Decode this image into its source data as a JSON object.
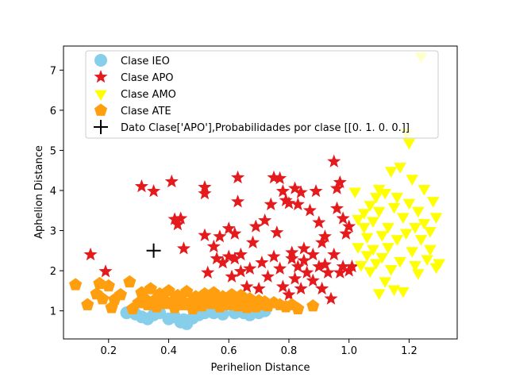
{
  "chart_data": {
    "type": "scatter",
    "title": "",
    "xlabel": "Perihelion Distance",
    "ylabel": "Aphelion Distance",
    "xlim": [
      0.05,
      1.36
    ],
    "ylim": [
      0.3,
      7.6
    ],
    "xticks": [
      0.2,
      0.4,
      0.6,
      0.8,
      1.0,
      1.2
    ],
    "xtick_labels": [
      "0.2",
      "0.4",
      "0.6",
      "0.8",
      "1.0",
      "1.2"
    ],
    "yticks": [
      1,
      2,
      3,
      4,
      5,
      6,
      7
    ],
    "ytick_labels": [
      "1",
      "2",
      "3",
      "4",
      "5",
      "6",
      "7"
    ],
    "grid": false,
    "legend_position": "top-left",
    "series": [
      {
        "name": "Clase IEO",
        "marker": "circle",
        "color": "#87ceeb",
        "points": [
          [
            0.26,
            0.95
          ],
          [
            0.29,
            0.92
          ],
          [
            0.31,
            0.85
          ],
          [
            0.33,
            0.8
          ],
          [
            0.35,
            0.9
          ],
          [
            0.37,
            0.95
          ],
          [
            0.4,
            0.8
          ],
          [
            0.42,
            0.85
          ],
          [
            0.44,
            0.72
          ],
          [
            0.45,
            0.78
          ],
          [
            0.46,
            0.68
          ],
          [
            0.48,
            0.82
          ],
          [
            0.5,
            0.9
          ],
          [
            0.52,
            0.95
          ],
          [
            0.55,
            0.95
          ],
          [
            0.58,
            0.92
          ],
          [
            0.62,
            0.95
          ],
          [
            0.65,
            0.95
          ],
          [
            0.67,
            0.9
          ],
          [
            0.7,
            0.95
          ],
          [
            0.72,
            1.0
          ]
        ]
      },
      {
        "name": "Clase APO",
        "marker": "star",
        "color": "#e41a1c",
        "points": [
          [
            0.14,
            2.4
          ],
          [
            0.19,
            1.98
          ],
          [
            0.31,
            4.1
          ],
          [
            0.35,
            3.98
          ],
          [
            0.41,
            4.22
          ],
          [
            0.42,
            3.28
          ],
          [
            0.43,
            3.15
          ],
          [
            0.44,
            3.3
          ],
          [
            0.45,
            2.55
          ],
          [
            0.52,
            2.88
          ],
          [
            0.52,
            4.08
          ],
          [
            0.52,
            3.92
          ],
          [
            0.53,
            1.95
          ],
          [
            0.55,
            2.6
          ],
          [
            0.56,
            2.3
          ],
          [
            0.57,
            2.85
          ],
          [
            0.58,
            2.2
          ],
          [
            0.6,
            3.05
          ],
          [
            0.6,
            2.35
          ],
          [
            0.61,
            1.85
          ],
          [
            0.62,
            2.92
          ],
          [
            0.62,
            2.3
          ],
          [
            0.63,
            3.72
          ],
          [
            0.63,
            4.32
          ],
          [
            0.64,
            1.98
          ],
          [
            0.64,
            2.4
          ],
          [
            0.66,
            1.6
          ],
          [
            0.67,
            2.05
          ],
          [
            0.68,
            2.7
          ],
          [
            0.69,
            3.1
          ],
          [
            0.7,
            1.55
          ],
          [
            0.71,
            2.2
          ],
          [
            0.72,
            3.25
          ],
          [
            0.73,
            1.85
          ],
          [
            0.74,
            3.65
          ],
          [
            0.75,
            4.32
          ],
          [
            0.75,
            2.35
          ],
          [
            0.76,
            2.95
          ],
          [
            0.77,
            4.3
          ],
          [
            0.77,
            2.05
          ],
          [
            0.78,
            3.98
          ],
          [
            0.78,
            1.6
          ],
          [
            0.79,
            3.75
          ],
          [
            0.8,
            3.68
          ],
          [
            0.8,
            1.4
          ],
          [
            0.81,
            2.45
          ],
          [
            0.81,
            2.3
          ],
          [
            0.82,
            4.05
          ],
          [
            0.82,
            1.8
          ],
          [
            0.83,
            2.1
          ],
          [
            0.83,
            3.65
          ],
          [
            0.84,
            3.95
          ],
          [
            0.84,
            1.55
          ],
          [
            0.85,
            2.25
          ],
          [
            0.85,
            2.55
          ],
          [
            0.86,
            1.95
          ],
          [
            0.87,
            3.5
          ],
          [
            0.88,
            2.4
          ],
          [
            0.88,
            1.75
          ],
          [
            0.89,
            3.98
          ],
          [
            0.9,
            2.1
          ],
          [
            0.9,
            3.2
          ],
          [
            0.91,
            2.7
          ],
          [
            0.91,
            1.55
          ],
          [
            0.92,
            2.85
          ],
          [
            0.92,
            2.15
          ],
          [
            0.93,
            1.95
          ],
          [
            0.94,
            1.3
          ],
          [
            0.95,
            2.4
          ],
          [
            0.95,
            4.72
          ],
          [
            0.96,
            3.55
          ],
          [
            0.96,
            4.05
          ],
          [
            0.97,
            4.2
          ],
          [
            0.97,
            1.95
          ],
          [
            0.98,
            3.3
          ],
          [
            0.98,
            2.1
          ],
          [
            0.99,
            2.92
          ],
          [
            1.0,
            3.1
          ],
          [
            1.0,
            2.0
          ],
          [
            1.01,
            2.1
          ]
        ]
      },
      {
        "name": "Clase AMO",
        "marker": "triangle-down",
        "color": "#ffff00",
        "points": [
          [
            1.02,
            3.98
          ],
          [
            1.03,
            3.3
          ],
          [
            1.03,
            2.6
          ],
          [
            1.04,
            2.15
          ],
          [
            1.05,
            3.1
          ],
          [
            1.05,
            3.45
          ],
          [
            1.06,
            2.4
          ],
          [
            1.06,
            2.85
          ],
          [
            1.07,
            2.0
          ],
          [
            1.07,
            3.65
          ],
          [
            1.08,
            3.25
          ],
          [
            1.08,
            2.55
          ],
          [
            1.09,
            3.85
          ],
          [
            1.09,
            2.2
          ],
          [
            1.1,
            4.05
          ],
          [
            1.1,
            3.5
          ],
          [
            1.1,
            1.45
          ],
          [
            1.11,
            2.9
          ],
          [
            1.11,
            2.35
          ],
          [
            1.12,
            3.95
          ],
          [
            1.12,
            1.75
          ],
          [
            1.13,
            3.1
          ],
          [
            1.13,
            2.6
          ],
          [
            1.14,
            4.5
          ],
          [
            1.14,
            2.05
          ],
          [
            1.15,
            3.6
          ],
          [
            1.15,
            1.55
          ],
          [
            1.16,
            2.8
          ],
          [
            1.16,
            3.85
          ],
          [
            1.17,
            2.25
          ],
          [
            1.17,
            4.6
          ],
          [
            1.18,
            1.5
          ],
          [
            1.18,
            3.35
          ],
          [
            1.19,
            2.95
          ],
          [
            1.19,
            5.45
          ],
          [
            1.2,
            3.7
          ],
          [
            1.2,
            5.2
          ],
          [
            1.21,
            2.5
          ],
          [
            1.21,
            4.3
          ],
          [
            1.22,
            3.1
          ],
          [
            1.22,
            2.15
          ],
          [
            1.23,
            3.5
          ],
          [
            1.23,
            1.95
          ],
          [
            1.24,
            7.35
          ],
          [
            1.24,
            2.8
          ],
          [
            1.25,
            4.05
          ],
          [
            1.25,
            3.2
          ],
          [
            1.26,
            2.3
          ],
          [
            1.27,
            3.0
          ],
          [
            1.27,
            2.55
          ],
          [
            1.28,
            3.75
          ],
          [
            1.29,
            2.1
          ],
          [
            1.29,
            3.35
          ],
          [
            1.3,
            2.2
          ]
        ]
      },
      {
        "name": "Clase ATE",
        "marker": "pentagon",
        "color": "#ff9f0f",
        "points": [
          [
            0.09,
            1.65
          ],
          [
            0.13,
            1.15
          ],
          [
            0.16,
            1.42
          ],
          [
            0.17,
            1.68
          ],
          [
            0.18,
            1.3
          ],
          [
            0.2,
            1.62
          ],
          [
            0.21,
            1.08
          ],
          [
            0.22,
            1.28
          ],
          [
            0.24,
            1.4
          ],
          [
            0.27,
            1.72
          ],
          [
            0.28,
            1.05
          ],
          [
            0.3,
            1.2
          ],
          [
            0.31,
            1.45
          ],
          [
            0.32,
            1.3
          ],
          [
            0.33,
            1.15
          ],
          [
            0.34,
            1.55
          ],
          [
            0.35,
            1.25
          ],
          [
            0.36,
            1.1
          ],
          [
            0.37,
            1.42
          ],
          [
            0.38,
            1.3
          ],
          [
            0.39,
            1.18
          ],
          [
            0.4,
            1.5
          ],
          [
            0.41,
            1.22
          ],
          [
            0.42,
            1.08
          ],
          [
            0.43,
            1.38
          ],
          [
            0.44,
            1.28
          ],
          [
            0.45,
            1.15
          ],
          [
            0.46,
            1.48
          ],
          [
            0.47,
            1.2
          ],
          [
            0.48,
            1.05
          ],
          [
            0.49,
            1.35
          ],
          [
            0.5,
            1.25
          ],
          [
            0.51,
            1.12
          ],
          [
            0.52,
            1.42
          ],
          [
            0.53,
            1.3
          ],
          [
            0.54,
            1.18
          ],
          [
            0.55,
            1.45
          ],
          [
            0.56,
            1.22
          ],
          [
            0.57,
            1.1
          ],
          [
            0.58,
            1.35
          ],
          [
            0.59,
            1.25
          ],
          [
            0.6,
            1.15
          ],
          [
            0.61,
            1.4
          ],
          [
            0.62,
            1.28
          ],
          [
            0.63,
            1.12
          ],
          [
            0.64,
            1.38
          ],
          [
            0.65,
            1.22
          ],
          [
            0.66,
            1.08
          ],
          [
            0.67,
            1.3
          ],
          [
            0.68,
            1.2
          ],
          [
            0.69,
            1.1
          ],
          [
            0.7,
            1.25
          ],
          [
            0.71,
            1.15
          ],
          [
            0.72,
            1.22
          ],
          [
            0.73,
            1.12
          ],
          [
            0.75,
            1.2
          ],
          [
            0.77,
            1.15
          ],
          [
            0.79,
            1.1
          ],
          [
            0.81,
            1.15
          ],
          [
            0.83,
            1.05
          ],
          [
            0.88,
            1.12
          ]
        ]
      },
      {
        "name": "Dato Clase['APO'],Probabilidades por clase [[0. 1. 0. 0.]]",
        "marker": "plus",
        "color": "#000000",
        "points": [
          [
            0.35,
            2.5
          ]
        ]
      }
    ]
  }
}
